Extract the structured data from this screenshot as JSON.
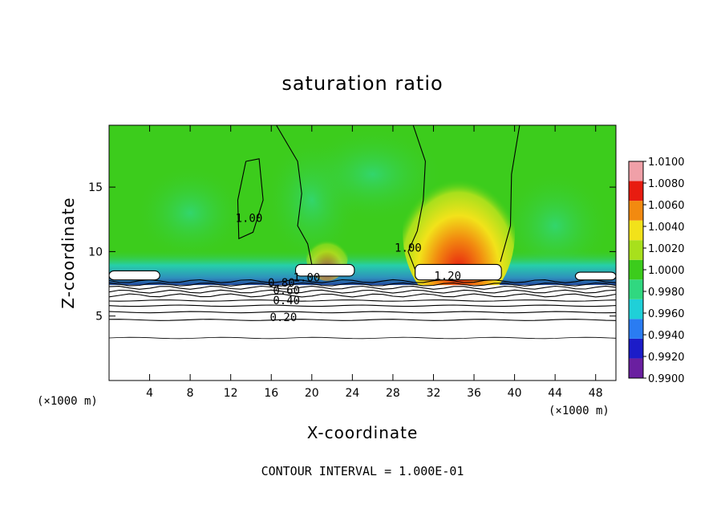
{
  "chart_data": {
    "type": "heatmap",
    "title": "saturation ratio",
    "xlabel": "X-coordinate",
    "ylabel": "Z-coordinate",
    "x_unit": "(×1000 m)",
    "x_unit_right": "(×1000 m)",
    "xlim": [
      0,
      50
    ],
    "ylim": [
      0,
      19.8
    ],
    "x_ticks": [
      4,
      8,
      12,
      16,
      20,
      24,
      28,
      32,
      36,
      40,
      44,
      48
    ],
    "x_tick_labels": [
      "4",
      "8",
      "12",
      "16",
      "20",
      "24",
      "28",
      "32",
      "36",
      "40",
      "44",
      "48"
    ],
    "y_ticks": [
      5,
      10,
      15
    ],
    "y_tick_labels": [
      "5",
      "10",
      "15"
    ],
    "colorbar": {
      "levels": [
        0.99,
        0.992,
        0.994,
        0.996,
        0.998,
        1.0,
        1.002,
        1.004,
        1.006,
        1.008,
        1.01
      ],
      "labels": [
        "0.9900",
        "0.9920",
        "0.9940",
        "0.9960",
        "0.9980",
        "1.0000",
        "1.0020",
        "1.0040",
        "1.0060",
        "1.0080",
        "1.0100"
      ],
      "colors": [
        "#6a1fa0",
        "#1c1cc8",
        "#2a7cf2",
        "#1fd0d8",
        "#30d880",
        "#3ccc1c",
        "#a8e01c",
        "#f2e21a",
        "#f28a10",
        "#e81c10",
        "#f0a0a8"
      ]
    },
    "contour_labels": [
      {
        "text": "1.00",
        "x": 13.8,
        "z": 12.3
      },
      {
        "text": "1.00",
        "x": 29.5,
        "z": 10.0
      },
      {
        "text": "1.00",
        "x": 19.5,
        "z": 7.7
      },
      {
        "text": "1.20",
        "x": 33.4,
        "z": 7.8
      },
      {
        "text": "0.80",
        "x": 17.0,
        "z": 7.3
      },
      {
        "text": "0.60",
        "x": 17.5,
        "z": 6.7
      },
      {
        "text": "0.40",
        "x": 17.5,
        "z": 5.9
      },
      {
        "text": "0.20",
        "x": 17.2,
        "z": 4.6
      }
    ],
    "contour_levels_z": [
      3.3,
      4.7,
      5.3,
      5.8,
      6.2,
      6.6,
      6.9,
      7.2,
      7.45,
      7.7
    ],
    "fields": {
      "background": 1.0,
      "updraft_max": {
        "x": 34.5,
        "z": 10.5,
        "value": 1.008
      },
      "subsaturated_band": {
        "z": 8.0,
        "value": 0.992
      },
      "below_z_value": "no fill"
    }
  },
  "footer": {
    "contour_interval": "CONTOUR INTERVAL = 1.000E-01"
  }
}
